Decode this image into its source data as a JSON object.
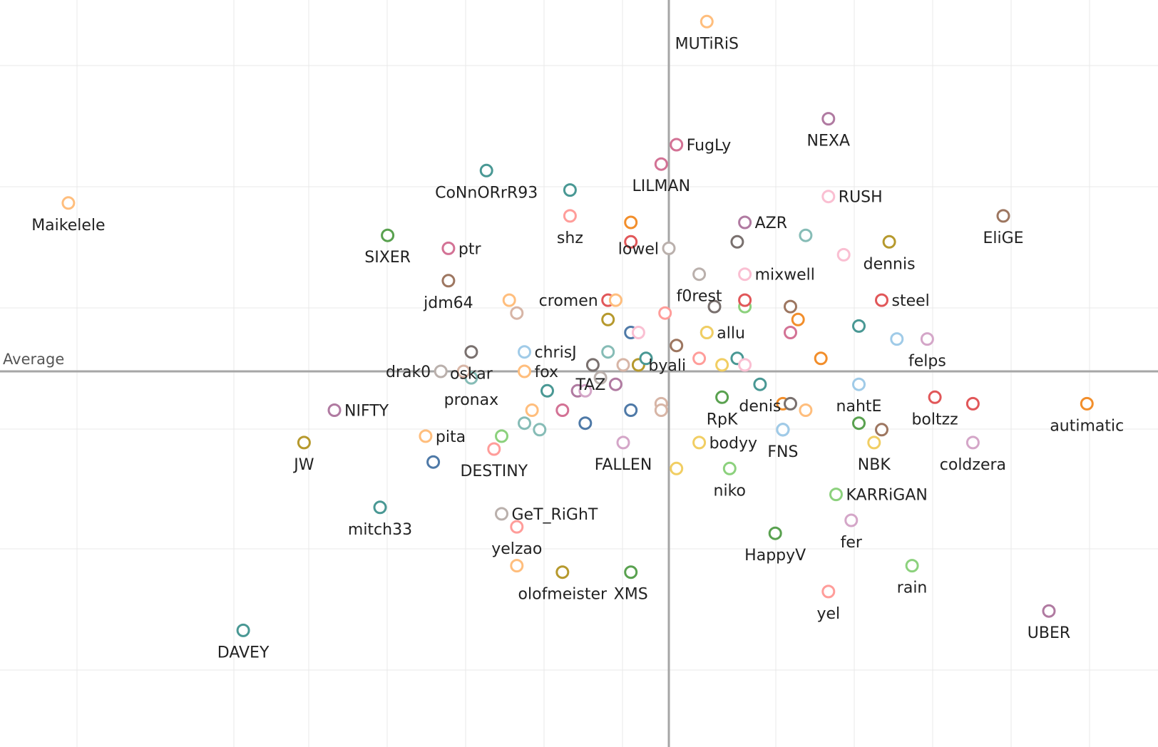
{
  "chart_data": {
    "type": "scatter",
    "title": "",
    "xlabel": "",
    "ylabel": "",
    "grid": true,
    "xlim": [
      -8.8,
      6.9
    ],
    "ylim": [
      -5.8,
      5.8
    ],
    "reference_lines": {
      "x": 0,
      "y": 0,
      "label": "Average"
    },
    "points": [
      {
        "label": "MUTiRiS",
        "x": 0.5,
        "y": 5.4,
        "color": "#ffbe7d"
      },
      {
        "label": "NEXA",
        "x": 2.1,
        "y": 3.9,
        "color": "#b07aa1"
      },
      {
        "label": "FugLy",
        "x": 0.1,
        "y": 3.5,
        "color": "#d37295"
      },
      {
        "label": "LILMAN",
        "x": -0.1,
        "y": 3.2,
        "color": "#d37295"
      },
      {
        "label": "CoNnORrR93",
        "x": -2.4,
        "y": 3.1,
        "color": "#499894"
      },
      {
        "label": "Maikelele",
        "x": -7.9,
        "y": 2.6,
        "color": "#ffbe7d"
      },
      {
        "label": "SIXER",
        "x": -3.7,
        "y": 2.1,
        "color": "#59a14f"
      },
      {
        "label": "ptr",
        "x": -2.9,
        "y": 1.9,
        "color": "#d37295"
      },
      {
        "label": "shz",
        "x": -1.3,
        "y": 2.4,
        "color": "#ff9d9a"
      },
      {
        "label": "RUSH",
        "x": 2.1,
        "y": 2.7,
        "color": "#fabfd2"
      },
      {
        "label": "AZR",
        "x": 1.0,
        "y": 2.3,
        "color": "#b07aa1"
      },
      {
        "label": "lowel",
        "x": 0.0,
        "y": 1.9,
        "color": "#bab0ac"
      },
      {
        "label": "EliGE",
        "x": 4.4,
        "y": 2.4,
        "color": "#9d7660"
      },
      {
        "label": "dennis",
        "x": 2.9,
        "y": 2.0,
        "color": "#b6992d"
      },
      {
        "label": "f0rest",
        "x": 0.4,
        "y": 1.5,
        "color": "#bab0ac"
      },
      {
        "label": "mixwell",
        "x": 1.0,
        "y": 1.5,
        "color": "#fabfd2"
      },
      {
        "label": "jdm64",
        "x": -2.9,
        "y": 1.4,
        "color": "#9d7660"
      },
      {
        "label": "cromen",
        "x": -0.8,
        "y": 1.1,
        "color": "#e15759"
      },
      {
        "label": "steel",
        "x": 2.8,
        "y": 1.1,
        "color": "#e15759"
      },
      {
        "label": "allu",
        "x": 0.5,
        "y": 0.6,
        "color": "#a0cbe8"
      },
      {
        "label": "oskar",
        "x": -2.6,
        "y": 0.3,
        "color": "#79706e"
      },
      {
        "label": "chrisJ",
        "x": -1.9,
        "y": 0.3,
        "color": "#a0cbe8"
      },
      {
        "label": "felps",
        "x": 3.4,
        "y": 0.5,
        "color": "#d4a6c8"
      },
      {
        "label": "drak0",
        "x": -3.0,
        "y": 0.0,
        "color": "#bab0ac"
      },
      {
        "label": "fox",
        "x": -1.9,
        "y": -0.0,
        "color": "#ffbe7d"
      },
      {
        "label": "pronax",
        "x": -2.6,
        "y": -0.1,
        "color": "#86bcb6"
      },
      {
        "label": "TAZ",
        "x": -0.7,
        "y": -0.2,
        "color": "#b07aa1"
      },
      {
        "label": "byali",
        "x": -0.4,
        "y": 0.1,
        "color": "#b6992d"
      },
      {
        "label": "denis",
        "x": 1.2,
        "y": -0.2,
        "color": "#499894"
      },
      {
        "label": "nahtE",
        "x": 2.5,
        "y": -0.2,
        "color": "#a0cbe8"
      },
      {
        "label": "RpK",
        "x": 0.7,
        "y": -0.4,
        "color": "#59a14f"
      },
      {
        "label": "NIFTY",
        "x": -4.4,
        "y": -0.6,
        "color": "#b07aa1"
      },
      {
        "label": "boltzz",
        "x": 3.5,
        "y": -0.4,
        "color": "#e15759"
      },
      {
        "label": "autimatic",
        "x": 5.5,
        "y": -0.5,
        "color": "#f28e2b"
      },
      {
        "label": "pita",
        "x": -3.2,
        "y": -1.0,
        "color": "#ffbe7d"
      },
      {
        "label": "JW",
        "x": -4.8,
        "y": -1.1,
        "color": "#b6992d"
      },
      {
        "label": "bodyy",
        "x": 0.4,
        "y": -1.1,
        "color": "#f1ce63"
      },
      {
        "label": "FNS",
        "x": 1.5,
        "y": -0.9,
        "color": "#4e79a7"
      },
      {
        "label": "NBK",
        "x": 2.7,
        "y": -1.1,
        "color": "#f1ce63"
      },
      {
        "label": "coldzera",
        "x": 4.0,
        "y": -1.1,
        "color": "#d4a6c8"
      },
      {
        "label": "DESTINY",
        "x": -2.3,
        "y": -1.2,
        "color": "#ff9d9a"
      },
      {
        "label": "FALLEN",
        "x": -0.6,
        "y": -1.1,
        "color": "#d4a6c8"
      },
      {
        "label": "niko",
        "x": 0.8,
        "y": -1.5,
        "color": "#8cd17d"
      },
      {
        "label": "KARRiGAN",
        "x": 2.2,
        "y": -1.9,
        "color": "#8cd17d"
      },
      {
        "label": "mitch33",
        "x": -3.8,
        "y": -2.1,
        "color": "#499894"
      },
      {
        "label": "GeT_RiGhT",
        "x": -2.2,
        "y": -2.2,
        "color": "#bab0ac"
      },
      {
        "label": "fer",
        "x": 2.4,
        "y": -2.3,
        "color": "#d4a6c8"
      },
      {
        "label": "yelzao",
        "x": -2.0,
        "y": -2.4,
        "color": "#ff9d9a"
      },
      {
        "label": "HappyV",
        "x": 1.4,
        "y": -2.5,
        "color": "#59a14f"
      },
      {
        "label": "rain",
        "x": 3.2,
        "y": -3.0,
        "color": "#8cd17d"
      },
      {
        "label": "olofmeister",
        "x": -1.4,
        "y": -3.1,
        "color": "#b6992d"
      },
      {
        "label": "XMS",
        "x": -0.5,
        "y": -3.1,
        "color": "#59a14f"
      },
      {
        "label": "yel",
        "x": 2.1,
        "y": -3.4,
        "color": "#ff9d9a"
      },
      {
        "label": "UBER",
        "x": 5.0,
        "y": -3.7,
        "color": "#b07aa1"
      },
      {
        "label": "DAVEY",
        "x": -5.6,
        "y": -4.0,
        "color": "#499894"
      },
      {
        "label": "",
        "x": -1.3,
        "y": 2.8,
        "color": "#499894"
      },
      {
        "label": "",
        "x": -0.5,
        "y": 2.3,
        "color": "#f28e2b"
      },
      {
        "label": "",
        "x": -0.5,
        "y": 2.0,
        "color": "#e15759"
      },
      {
        "label": "",
        "x": 0.9,
        "y": 2.0,
        "color": "#79706e"
      },
      {
        "label": "",
        "x": 1.8,
        "y": 2.1,
        "color": "#86bcb6"
      },
      {
        "label": "",
        "x": 2.3,
        "y": 1.8,
        "color": "#fabfd2"
      },
      {
        "label": "",
        "x": -2.1,
        "y": 1.1,
        "color": "#ffbe7d"
      },
      {
        "label": "",
        "x": -2.0,
        "y": 0.9,
        "color": "#d7b5a6"
      },
      {
        "label": "",
        "x": -0.7,
        "y": 1.1,
        "color": "#ffbe7d"
      },
      {
        "label": "",
        "x": -0.8,
        "y": 0.8,
        "color": "#b6992d"
      },
      {
        "label": "",
        "x": -0.05,
        "y": 0.9,
        "color": "#ff9d9a"
      },
      {
        "label": "",
        "x": 0.6,
        "y": 1.0,
        "color": "#79706e"
      },
      {
        "label": "",
        "x": 1.0,
        "y": 1.0,
        "color": "#8cd17d"
      },
      {
        "label": "",
        "x": 1.0,
        "y": 1.1,
        "color": "#e15759"
      },
      {
        "label": "",
        "x": 1.6,
        "y": 1.0,
        "color": "#9d7660"
      },
      {
        "label": "",
        "x": 1.7,
        "y": 0.8,
        "color": "#f28e2b"
      },
      {
        "label": "",
        "x": 1.6,
        "y": 0.6,
        "color": "#d37295"
      },
      {
        "label": "",
        "x": 2.5,
        "y": 0.7,
        "color": "#499894"
      },
      {
        "label": "",
        "x": 3.0,
        "y": 0.5,
        "color": "#a0cbe8"
      },
      {
        "label": "",
        "x": 0.5,
        "y": 0.6,
        "color": "#f1ce63"
      },
      {
        "label": "",
        "x": -0.5,
        "y": 0.6,
        "color": "#4e79a7"
      },
      {
        "label": "",
        "x": -0.4,
        "y": 0.6,
        "color": "#fabfd2"
      },
      {
        "label": "",
        "x": -0.8,
        "y": 0.3,
        "color": "#86bcb6"
      },
      {
        "label": "",
        "x": 0.1,
        "y": 0.4,
        "color": "#9d7660"
      },
      {
        "label": "",
        "x": -0.3,
        "y": 0.2,
        "color": "#499894"
      },
      {
        "label": "",
        "x": -1.0,
        "y": 0.1,
        "color": "#79706e"
      },
      {
        "label": "",
        "x": -0.6,
        "y": 0.1,
        "color": "#d7b5a6"
      },
      {
        "label": "",
        "x": -0.9,
        "y": -0.1,
        "color": "#bab0ac"
      },
      {
        "label": "",
        "x": 0.4,
        "y": 0.2,
        "color": "#ff9d9a"
      },
      {
        "label": "",
        "x": 0.7,
        "y": 0.1,
        "color": "#f1ce63"
      },
      {
        "label": "",
        "x": 0.9,
        "y": 0.2,
        "color": "#499894"
      },
      {
        "label": "",
        "x": 1.0,
        "y": 0.1,
        "color": "#fabfd2"
      },
      {
        "label": "",
        "x": 2.0,
        "y": 0.2,
        "color": "#f28e2b"
      },
      {
        "label": "",
        "x": -2.7,
        "y": -0.0,
        "color": "#d7b5a6"
      },
      {
        "label": "",
        "x": -1.6,
        "y": -0.3,
        "color": "#499894"
      },
      {
        "label": "",
        "x": -1.2,
        "y": -0.3,
        "color": "#b07aa1"
      },
      {
        "label": "",
        "x": -1.1,
        "y": -0.3,
        "color": "#d4a6c8"
      },
      {
        "label": "",
        "x": -1.8,
        "y": -0.6,
        "color": "#ffbe7d"
      },
      {
        "label": "",
        "x": -1.4,
        "y": -0.6,
        "color": "#d37295"
      },
      {
        "label": "",
        "x": -0.5,
        "y": -0.6,
        "color": "#4e79a7"
      },
      {
        "label": "",
        "x": -0.1,
        "y": -0.5,
        "color": "#d7b5a6"
      },
      {
        "label": "",
        "x": -0.1,
        "y": -0.6,
        "color": "#d7b5a6"
      },
      {
        "label": "",
        "x": -1.9,
        "y": -0.8,
        "color": "#86bcb6"
      },
      {
        "label": "",
        "x": -1.7,
        "y": -0.9,
        "color": "#86bcb6"
      },
      {
        "label": "",
        "x": -1.1,
        "y": -0.8,
        "color": "#4e79a7"
      },
      {
        "label": "",
        "x": -2.2,
        "y": -1.0,
        "color": "#8cd17d"
      },
      {
        "label": "",
        "x": -3.1,
        "y": -1.4,
        "color": "#4e79a7"
      },
      {
        "label": "",
        "x": 1.5,
        "y": -0.5,
        "color": "#f28e2b"
      },
      {
        "label": "",
        "x": 1.6,
        "y": -0.5,
        "color": "#79706e"
      },
      {
        "label": "",
        "x": 1.8,
        "y": -0.6,
        "color": "#ffbe7d"
      },
      {
        "label": "",
        "x": 2.5,
        "y": -0.8,
        "color": "#59a14f"
      },
      {
        "label": "",
        "x": 2.8,
        "y": -0.9,
        "color": "#9d7660"
      },
      {
        "label": "",
        "x": 4.0,
        "y": -0.5,
        "color": "#e15759"
      },
      {
        "label": "",
        "x": 1.5,
        "y": -0.9,
        "color": "#a0cbe8"
      },
      {
        "label": "",
        "x": 0.1,
        "y": -1.5,
        "color": "#f1ce63"
      },
      {
        "label": "",
        "x": -2.0,
        "y": -3.0,
        "color": "#ffbe7d"
      }
    ]
  }
}
